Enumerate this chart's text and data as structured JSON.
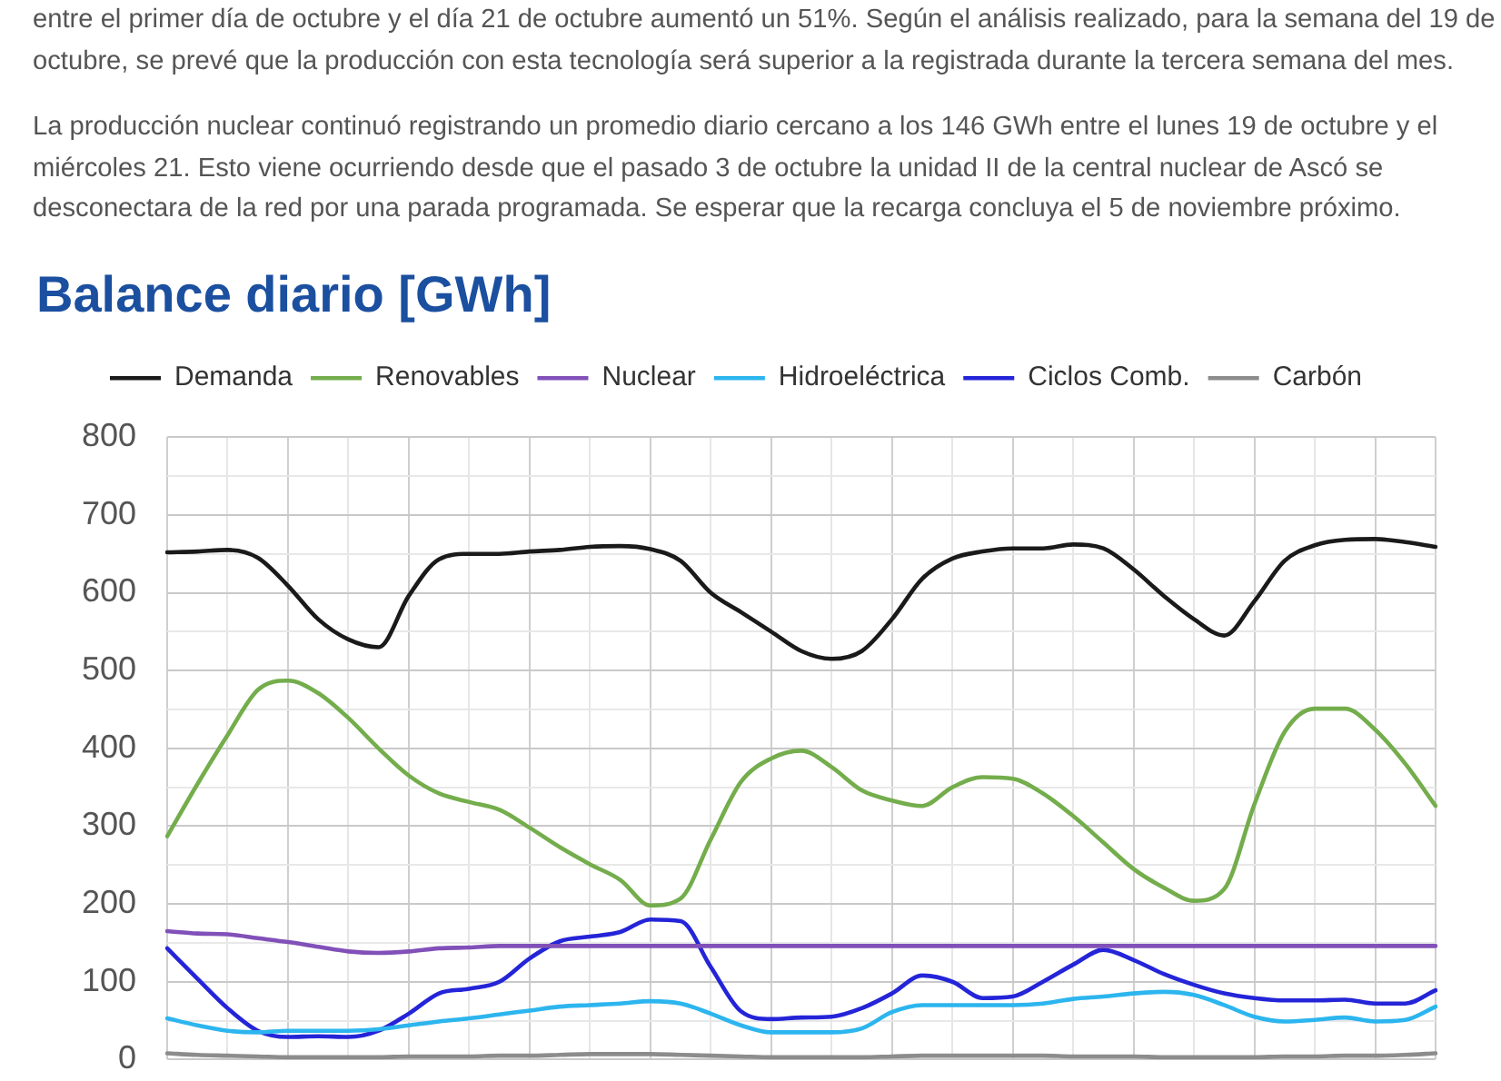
{
  "chart_data": {
    "type": "line",
    "title": "Balance diario [GWh]",
    "annotations": [
      "entre el primer día de octubre y el día 21 de octubre aumentó un 51%. Según el análisis realizado, para la semana del 19 de octubre, se prevé que la producción con esta tecnología será superior a la registrada durante la tercera semana del mes.",
      "La producción nuclear continuó registrando un promedio diario cercano a los 146 GWh entre el lunes 19 de octubre y el miércoles 21. Esto viene ocurriendo desde que el pasado 3 de octubre la unidad II de la central nuclear de Ascó se desconectara de la red por una parada programada. Se esperar que la recarga concluya el 5 de noviembre próximo."
    ],
    "categories": [
      null,
      null,
      null,
      null,
      null,
      null,
      null,
      null,
      null,
      null,
      null,
      null,
      null,
      null,
      null,
      null,
      null,
      null,
      null,
      null,
      null,
      null,
      null,
      null,
      null,
      null,
      null,
      null,
      null,
      null,
      null,
      null,
      null,
      null,
      null,
      null,
      null,
      null,
      null,
      null,
      null,
      null,
      null
    ],
    "series": [
      {
        "name": "Demanda",
        "color": "#1a1a1a",
        "values": [
          652,
          653,
          655,
          645,
          609,
          566,
          540,
          530,
          596,
          643,
          650,
          650,
          653,
          655,
          659,
          660,
          656,
          641,
          600,
          575,
          550,
          525,
          515,
          525,
          566,
          618,
          644,
          653,
          657,
          657,
          662,
          657,
          630,
          596,
          566,
          545,
          589,
          641,
          661,
          668,
          669,
          665,
          659
        ]
      },
      {
        "name": "Renovables",
        "color": "#74ad4c",
        "values": [
          287,
          354,
          417,
          475,
          487,
          471,
          439,
          400,
          365,
          342,
          331,
          321,
          298,
          273,
          251,
          231,
          198,
          207,
          283,
          357,
          387,
          397,
          376,
          346,
          333,
          326,
          350,
          363,
          361,
          342,
          313,
          279,
          245,
          221,
          204,
          219,
          328,
          421,
          451,
          451,
          424,
          380,
          326
        ]
      },
      {
        "name": "Nuclear",
        "color": "#8150b8",
        "values": [
          165,
          162,
          161,
          156,
          151,
          145,
          139,
          137,
          139,
          143,
          144,
          146,
          146,
          146,
          146,
          146,
          146,
          146,
          146,
          146,
          146,
          146,
          146,
          146,
          146,
          146,
          146,
          146,
          146,
          146,
          146,
          146,
          146,
          146,
          146,
          146,
          146,
          146,
          146,
          146,
          146,
          146,
          146
        ]
      },
      {
        "name": "Hidroeléctrica",
        "color": "#2cb5ee",
        "values": [
          53,
          44,
          37,
          35,
          37,
          37,
          37,
          39,
          44,
          49,
          53,
          58,
          63,
          68,
          70,
          72,
          75,
          72,
          59,
          44,
          35,
          35,
          35,
          40,
          61,
          70,
          70,
          70,
          70,
          72,
          78,
          81,
          85,
          87,
          83,
          70,
          55,
          49,
          51,
          54,
          49,
          51,
          68
        ]
      },
      {
        "name": "Ciclos Comb.",
        "color": "#2424d8",
        "values": [
          143,
          104,
          66,
          37,
          29,
          30,
          29,
          37,
          59,
          85,
          91,
          100,
          130,
          152,
          158,
          164,
          180,
          178,
          119,
          62,
          52,
          54,
          55,
          66,
          85,
          108,
          100,
          79,
          81,
          100,
          122,
          141,
          128,
          110,
          96,
          85,
          79,
          76,
          76,
          77,
          72,
          72,
          89
        ]
      },
      {
        "name": "Carbón",
        "color": "#8c8c8c",
        "values": [
          8,
          6,
          5,
          4,
          3,
          3,
          3,
          3,
          4,
          4,
          4,
          5,
          5,
          6,
          7,
          7,
          7,
          6,
          5,
          4,
          3,
          3,
          3,
          3,
          4,
          5,
          5,
          5,
          5,
          5,
          4,
          4,
          4,
          3,
          3,
          3,
          3,
          4,
          4,
          5,
          5,
          6,
          8
        ]
      }
    ],
    "ylim": [
      0,
      800
    ],
    "yticks": [
      0,
      {
        "value": 50,
        "label": null
      },
      100,
      {
        "value": 150,
        "label": null
      },
      200,
      {
        "value": 250,
        "label": null
      },
      300,
      {
        "value": 350,
        "label": null
      },
      400,
      {
        "value": 450,
        "label": null
      },
      500,
      {
        "value": 550,
        "label": null
      },
      600,
      {
        "value": 650,
        "label": null
      },
      700,
      {
        "value": 750,
        "label": null
      },
      800
    ],
    "grid": true,
    "legend": "top",
    "tick_labels": "y"
  }
}
